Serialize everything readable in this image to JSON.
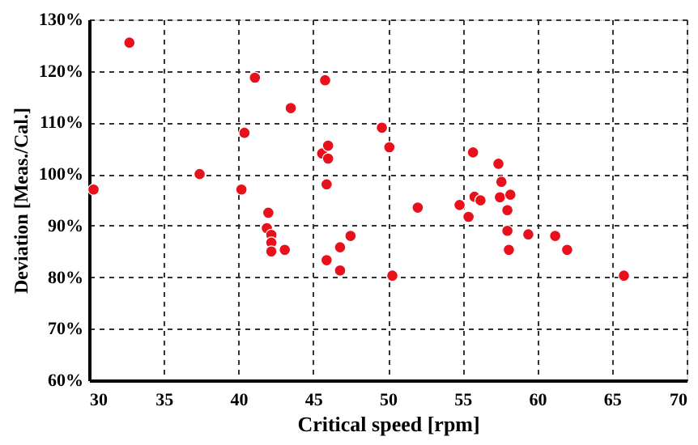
{
  "chart_data": {
    "type": "scatter",
    "xlabel": "Critical speed [rpm]",
    "ylabel": "Deviation [Meas./Cal.]",
    "x": [
      30.3,
      32.7,
      37.4,
      40.2,
      40.4,
      41.1,
      41.9,
      42,
      42.2,
      42.2,
      42.2,
      43.1,
      43.5,
      45.8,
      45.9,
      45.6,
      46,
      46,
      45.9,
      46.8,
      46.8,
      47.5,
      49.6,
      50.1,
      50.3,
      52,
      54.8,
      55.4,
      55.7,
      55.8,
      56.2,
      57.4,
      57.6,
      57.5,
      58,
      58.2,
      58,
      58.1,
      59.4,
      61.2,
      62,
      65.8
    ],
    "series": [
      {
        "color": "#e8101a",
        "values": [
          97,
          125.5,
          100,
          97,
          108,
          118.7,
          89.5,
          92.5,
          88.2,
          86.7,
          85,
          85.3,
          112.8,
          118.2,
          83.3,
          104,
          105.5,
          103,
          98,
          81.3,
          85.8,
          88,
          109,
          105.2,
          80.3,
          93.5,
          94,
          91.7,
          104.2,
          95.6,
          94.9,
          102,
          98.5,
          95.5,
          93,
          96,
          89,
          85.3,
          88.3,
          88,
          85.3,
          80.3
        ]
      }
    ],
    "xlim": [
      30,
      70
    ],
    "xticks": [
      30,
      35,
      40,
      45,
      50,
      55,
      60,
      65,
      70
    ],
    "ylim": [
      60,
      130
    ],
    "yticks": [
      {
        "value": 60,
        "label": "60%"
      },
      {
        "value": 70,
        "label": "70%"
      },
      {
        "value": 80,
        "label": "80%"
      },
      {
        "value": 90,
        "label": "90%"
      },
      {
        "value": 100,
        "label": "100%"
      },
      {
        "value": 110,
        "label": "110%"
      },
      {
        "value": 120,
        "label": "120%"
      },
      {
        "value": 130,
        "label": "130%"
      }
    ],
    "grid": true,
    "marker": "circle"
  }
}
